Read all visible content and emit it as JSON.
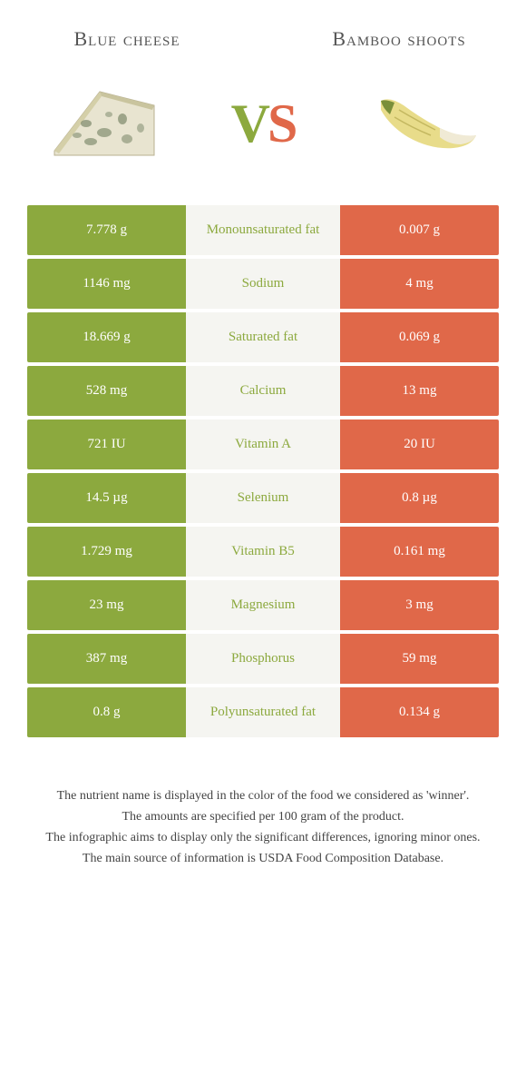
{
  "colors": {
    "left_bg": "#8ca93e",
    "right_bg": "#e06849",
    "mid_bg": "#f5f5f1",
    "mid_text_left": "#8ca93e",
    "mid_text_right": "#e06849"
  },
  "foods": {
    "left": {
      "title": "Blue cheese"
    },
    "right": {
      "title": "Bamboo shoots"
    }
  },
  "vs": {
    "v": "V",
    "s": "S"
  },
  "rows": [
    {
      "left": "7.778 g",
      "label": "Monounsaturated fat",
      "right": "0.007 g",
      "winner": "left"
    },
    {
      "left": "1146 mg",
      "label": "Sodium",
      "right": "4 mg",
      "winner": "left"
    },
    {
      "left": "18.669 g",
      "label": "Saturated fat",
      "right": "0.069 g",
      "winner": "left"
    },
    {
      "left": "528 mg",
      "label": "Calcium",
      "right": "13 mg",
      "winner": "left"
    },
    {
      "left": "721 IU",
      "label": "Vitamin A",
      "right": "20 IU",
      "winner": "left"
    },
    {
      "left": "14.5 µg",
      "label": "Selenium",
      "right": "0.8 µg",
      "winner": "left"
    },
    {
      "left": "1.729 mg",
      "label": "Vitamin B5",
      "right": "0.161 mg",
      "winner": "left"
    },
    {
      "left": "23 mg",
      "label": "Magnesium",
      "right": "3 mg",
      "winner": "left"
    },
    {
      "left": "387 mg",
      "label": "Phosphorus",
      "right": "59 mg",
      "winner": "left"
    },
    {
      "left": "0.8 g",
      "label": "Polyunsaturated fat",
      "right": "0.134 g",
      "winner": "left"
    }
  ],
  "footer": {
    "l1": "The nutrient name is displayed in the color of the food we considered as 'winner'.",
    "l2": "The amounts are specified per 100 gram of the product.",
    "l3": "The infographic aims to display only the significant differences, ignoring minor ones.",
    "l4": "The main source of information is USDA Food Composition Database."
  }
}
